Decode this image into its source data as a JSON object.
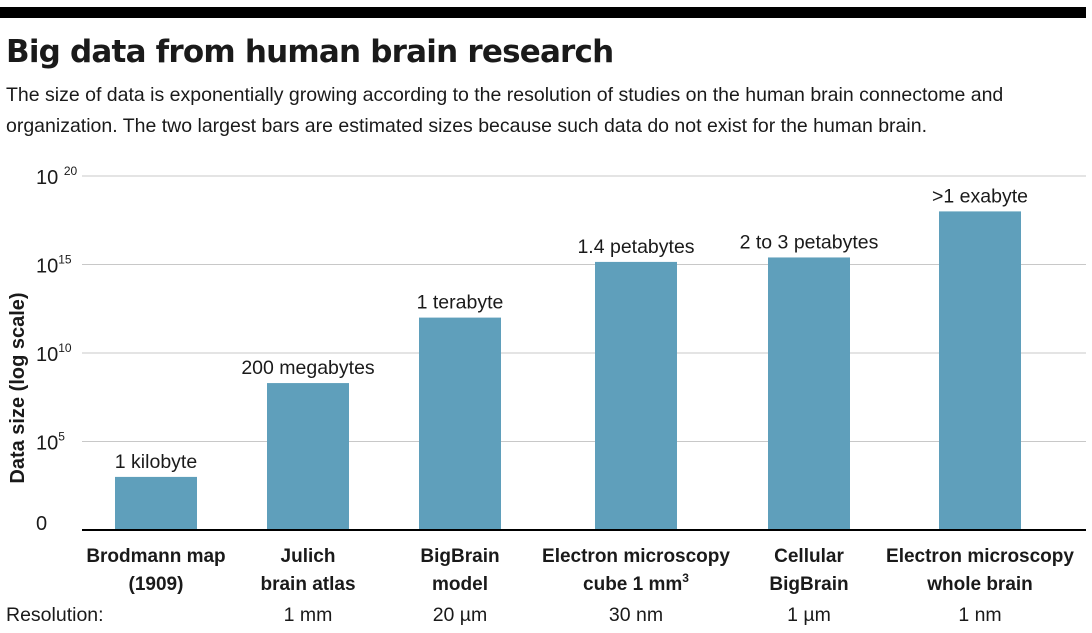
{
  "header": {
    "title": "Big data from human brain research",
    "subtitle": "The size of data is exponentially growing according to the resolution of studies on the human brain connectome and organization. The two largest bars are estimated sizes because such data do not exist for the human brain."
  },
  "chart_data": {
    "type": "bar",
    "scale": "log",
    "ylabel": "Data size (log scale)",
    "ylim": [
      1,
      1e+20
    ],
    "yticks": [
      {
        "base": "0",
        "exp": "",
        "value": 1
      },
      {
        "base": "10",
        "exp": "5",
        "value": 100000.0
      },
      {
        "base": "10",
        "exp": "10",
        "value": 10000000000.0
      },
      {
        "base": "10",
        "exp": "15",
        "value": 1000000000000000.0
      },
      {
        "base": "10 ",
        "exp": "20",
        "value": 1e+20
      }
    ],
    "grid": true,
    "bar_color": "#5f9fbb",
    "row_label": "Resolution:",
    "categories": [
      {
        "line1": "Brodmann map",
        "line2": "(1909)",
        "resolution": ""
      },
      {
        "line1": "Julich",
        "line2": "brain atlas",
        "resolution": "1 mm"
      },
      {
        "line1": "BigBrain",
        "line2": "model",
        "resolution": "20 µm"
      },
      {
        "line1": "Electron microscopy",
        "line2": "cube 1 mm",
        "line2_sup": "3",
        "resolution": "30 nm"
      },
      {
        "line1": "Cellular",
        "line2": "BigBrain",
        "resolution": "1 µm"
      },
      {
        "line1": "Electron microscopy",
        "line2": "whole brain",
        "resolution": "1 nm"
      }
    ],
    "values": [
      1000,
      200000000,
      1000000000000,
      1400000000000000,
      2500000000000000,
      1000000000000000000
    ],
    "data_labels": [
      "1 kilobyte",
      "200 megabytes",
      "1 terabyte",
      "1.4 petabytes",
      "2 to 3 petabytes",
      ">1 exabyte"
    ]
  }
}
